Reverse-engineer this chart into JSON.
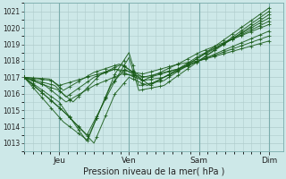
{
  "bg_color": "#cde8e8",
  "grid_color": "#b0cccc",
  "line_color": "#1a5c1a",
  "ylim": [
    1012.5,
    1021.5
  ],
  "yticks": [
    1013,
    1014,
    1015,
    1016,
    1017,
    1018,
    1019,
    1020,
    1021
  ],
  "xlabel": "Pression niveau de la mer( hPa )",
  "day_labels": [
    "Jeu",
    "Ven",
    "Sam",
    "Dim"
  ],
  "day_positions": [
    0.25,
    0.75,
    1.25,
    1.75
  ],
  "xlim": [
    0.0,
    1.85
  ],
  "lines": [
    {
      "keypoints": [
        [
          0,
          1017
        ],
        [
          0.25,
          1015.5
        ],
        [
          0.45,
          1013.1
        ],
        [
          0.65,
          1017.2
        ],
        [
          0.75,
          1018.5
        ],
        [
          0.82,
          1016.5
        ],
        [
          1.0,
          1016.8
        ],
        [
          1.25,
          1018.2
        ],
        [
          1.75,
          1021.2
        ]
      ]
    },
    {
      "keypoints": [
        [
          0,
          1017
        ],
        [
          0.25,
          1015.2
        ],
        [
          0.45,
          1013.5
        ],
        [
          0.65,
          1016.8
        ],
        [
          0.75,
          1018.2
        ],
        [
          0.82,
          1016.2
        ],
        [
          1.0,
          1016.5
        ],
        [
          1.25,
          1018.0
        ],
        [
          1.75,
          1021.0
        ]
      ]
    },
    {
      "keypoints": [
        [
          0,
          1017
        ],
        [
          0.28,
          1014.3
        ],
        [
          0.45,
          1013.2
        ],
        [
          0.62,
          1016.5
        ],
        [
          0.72,
          1017.5
        ],
        [
          0.85,
          1016.8
        ],
        [
          1.0,
          1017.0
        ],
        [
          1.25,
          1018.0
        ],
        [
          1.75,
          1020.8
        ]
      ]
    },
    {
      "keypoints": [
        [
          0,
          1017
        ],
        [
          0.3,
          1014.8
        ],
        [
          0.5,
          1013.0
        ],
        [
          0.65,
          1016.0
        ],
        [
          0.75,
          1017.0
        ],
        [
          0.88,
          1016.5
        ],
        [
          1.05,
          1017.2
        ],
        [
          1.25,
          1018.2
        ],
        [
          1.75,
          1020.6
        ]
      ]
    },
    {
      "keypoints": [
        [
          0,
          1017
        ],
        [
          0.25,
          1016.2
        ],
        [
          0.35,
          1015.5
        ],
        [
          0.55,
          1017.2
        ],
        [
          0.7,
          1017.8
        ],
        [
          0.9,
          1016.5
        ],
        [
          1.1,
          1017.5
        ],
        [
          1.25,
          1018.3
        ],
        [
          1.75,
          1020.4
        ]
      ]
    },
    {
      "keypoints": [
        [
          0,
          1017
        ],
        [
          0.22,
          1016.5
        ],
        [
          0.3,
          1015.8
        ],
        [
          0.5,
          1017.0
        ],
        [
          0.65,
          1017.5
        ],
        [
          0.85,
          1016.8
        ],
        [
          1.1,
          1017.8
        ],
        [
          1.25,
          1018.5
        ],
        [
          1.75,
          1020.2
        ]
      ]
    },
    {
      "keypoints": [
        [
          0,
          1017
        ],
        [
          0.2,
          1016.8
        ],
        [
          0.28,
          1016.2
        ],
        [
          0.5,
          1017.3
        ],
        [
          0.68,
          1017.8
        ],
        [
          0.85,
          1017.0
        ],
        [
          1.1,
          1017.5
        ],
        [
          1.25,
          1018.0
        ],
        [
          1.75,
          1019.8
        ]
      ]
    },
    {
      "keypoints": [
        [
          0,
          1017
        ],
        [
          0.18,
          1016.9
        ],
        [
          0.25,
          1016.5
        ],
        [
          0.45,
          1017.0
        ],
        [
          0.65,
          1017.5
        ],
        [
          0.85,
          1017.2
        ],
        [
          1.1,
          1017.8
        ],
        [
          1.25,
          1018.0
        ],
        [
          1.75,
          1019.5
        ]
      ]
    },
    {
      "keypoints": [
        [
          0,
          1017
        ],
        [
          0.15,
          1016.5
        ],
        [
          0.3,
          1015.5
        ],
        [
          0.5,
          1016.5
        ],
        [
          0.7,
          1017.2
        ],
        [
          0.9,
          1017.0
        ],
        [
          1.1,
          1017.5
        ],
        [
          1.25,
          1018.0
        ],
        [
          1.75,
          1019.2
        ]
      ]
    }
  ]
}
